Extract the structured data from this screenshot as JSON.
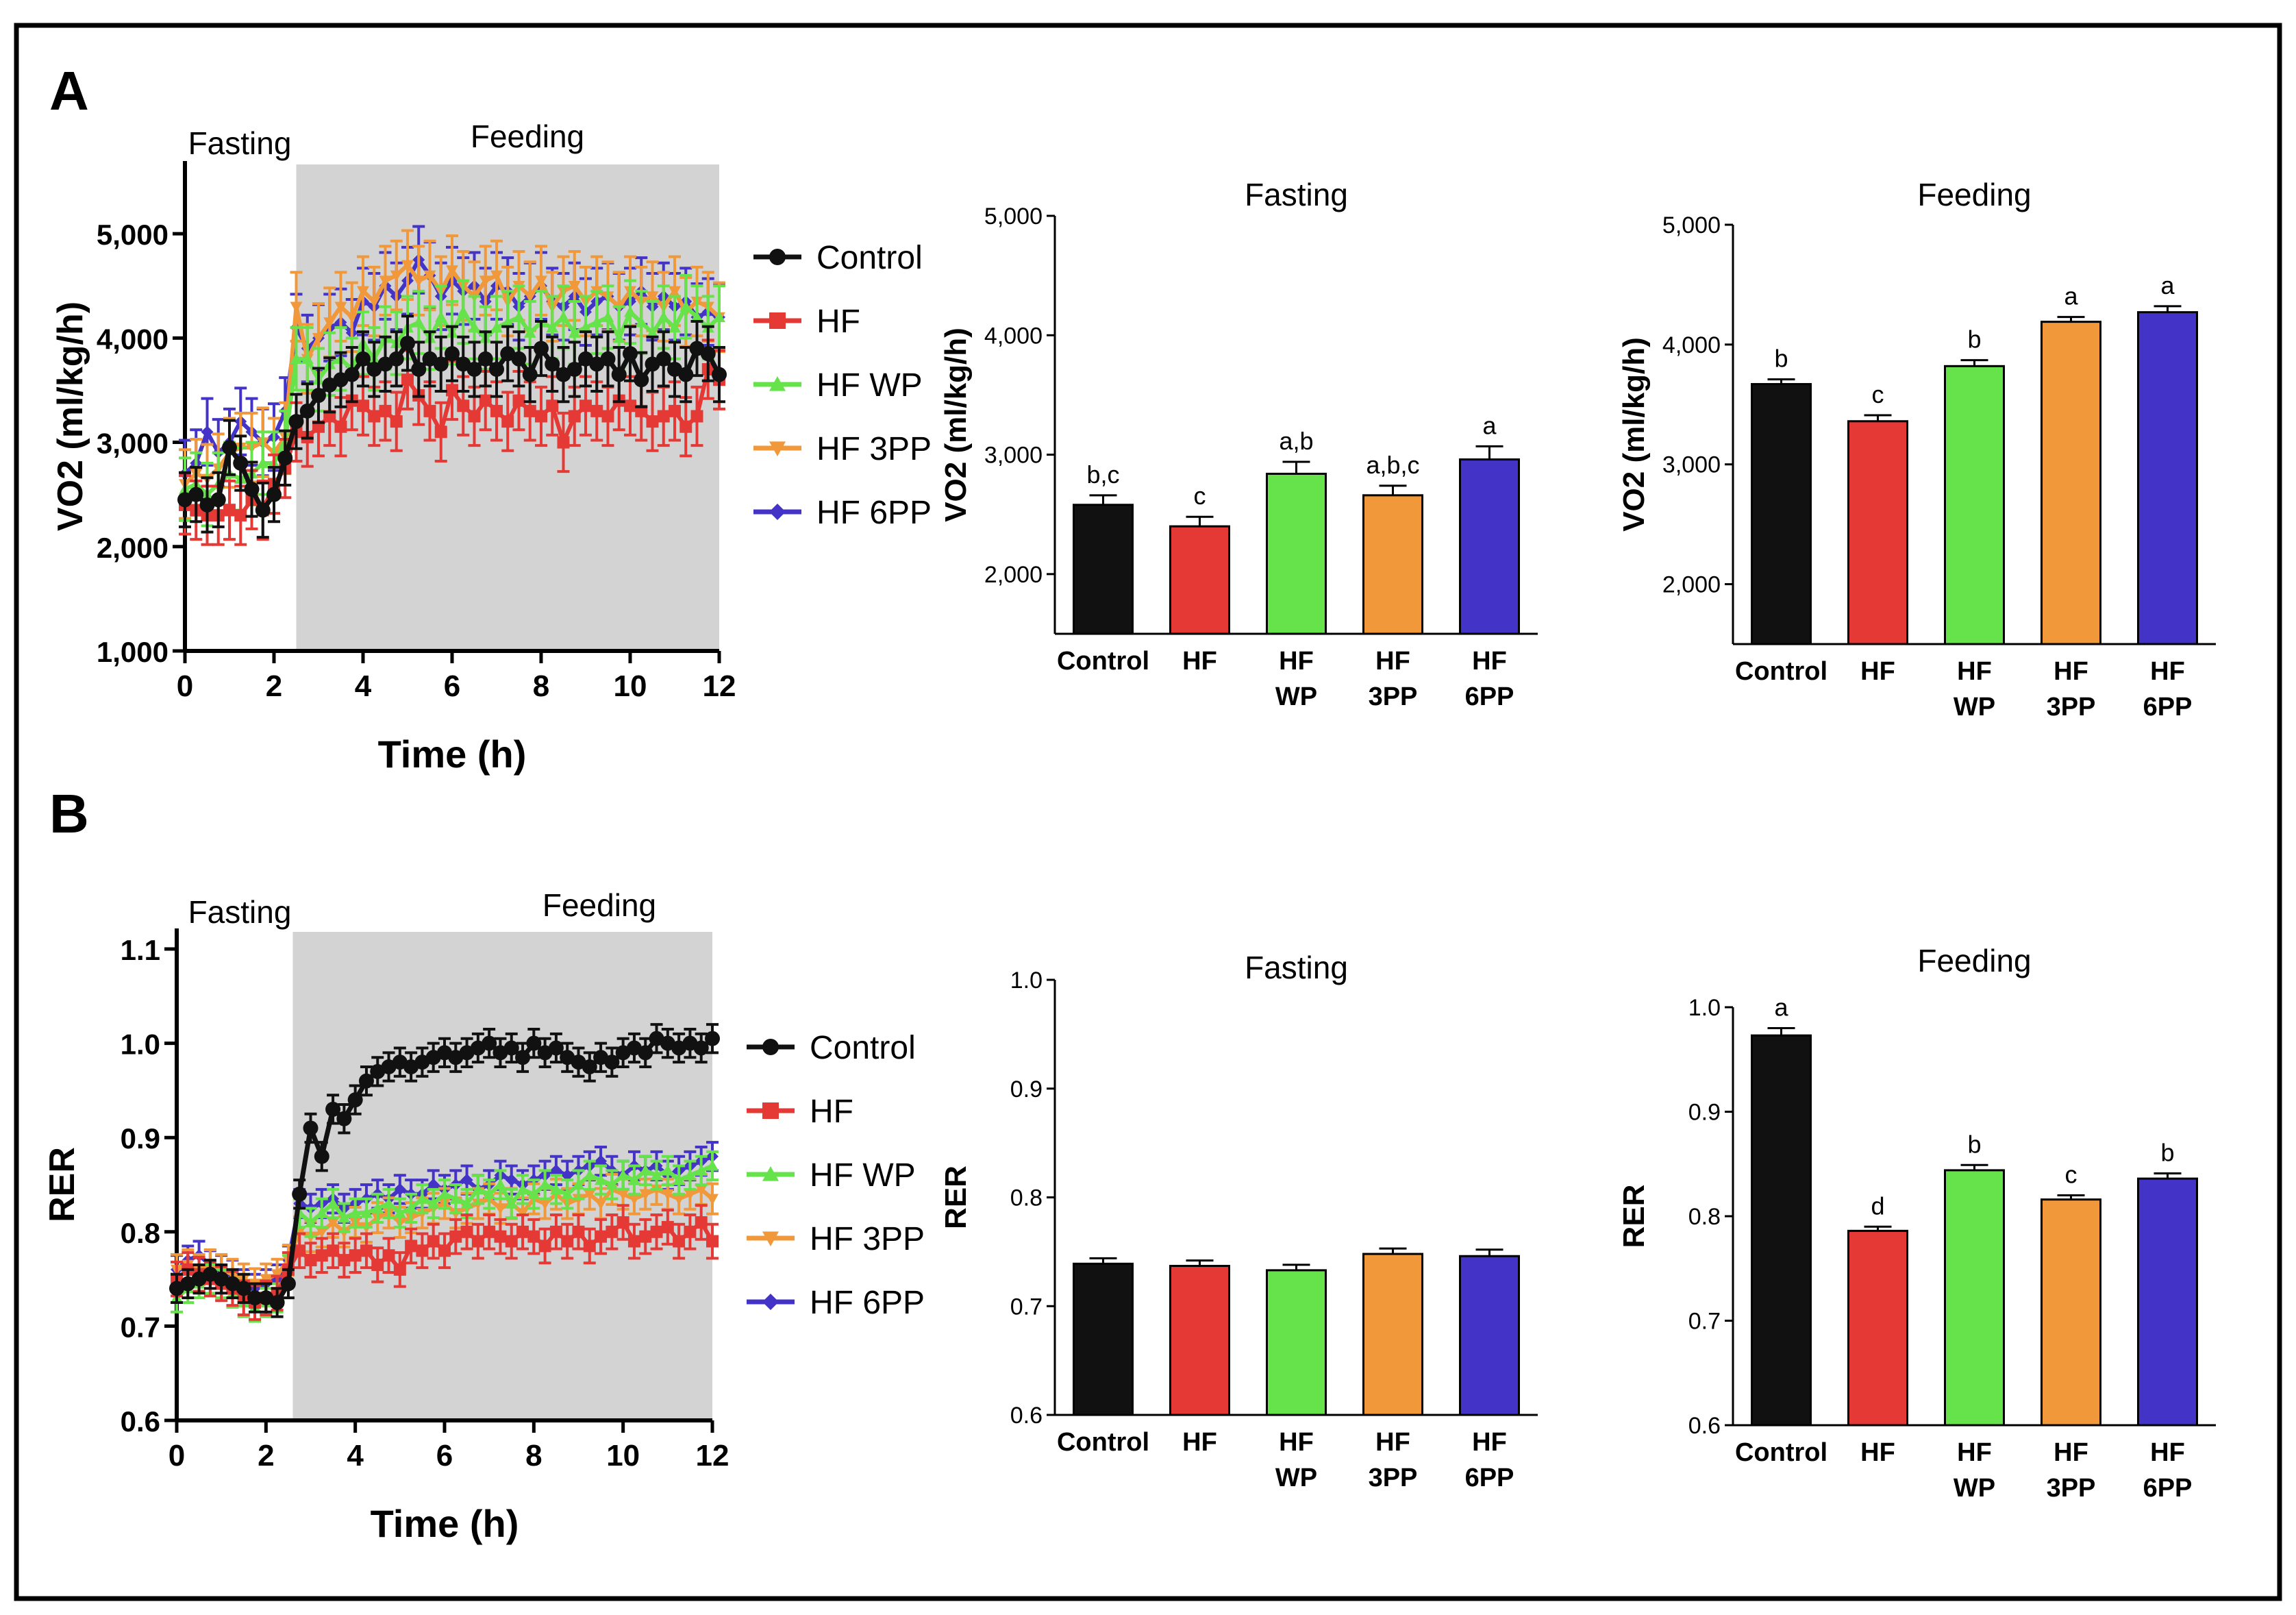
{
  "panels": {
    "A": "A",
    "B": "B"
  },
  "colors": {
    "Control": "#111111",
    "HF": "#e53935",
    "HF WP": "#66e34a",
    "HF 3PP": "#f0983a",
    "HF 6PP": "#4433c7",
    "shade": "#d3d3d3"
  },
  "chart_data": [
    {
      "id": "A_time",
      "type": "line",
      "ylabel": "VO2 (ml/kg/h)",
      "xlabel": "Time (h)",
      "xlim": [
        0,
        12
      ],
      "ylim": [
        1000,
        5500
      ],
      "xticks": [
        0,
        2,
        4,
        6,
        8,
        10,
        12
      ],
      "yticks": [
        1000,
        2000,
        3000,
        4000,
        5000
      ],
      "ytick_labels": [
        "1,000",
        "2,000",
        "3,000",
        "4,000",
        "5,000"
      ],
      "phase_labels": {
        "fasting": "Fasting",
        "feeding": "Feeding"
      },
      "feeding_start": 2.5,
      "legend": [
        "Control",
        "HF",
        "HF WP",
        "HF 3PP",
        "HF 6PP"
      ],
      "x": [
        0,
        0.25,
        0.5,
        0.75,
        1,
        1.25,
        1.5,
        1.75,
        2,
        2.25,
        2.5,
        2.75,
        3,
        3.25,
        3.5,
        3.75,
        4,
        4.25,
        4.5,
        4.75,
        5,
        5.25,
        5.5,
        5.75,
        6,
        6.25,
        6.5,
        6.75,
        7,
        7.25,
        7.5,
        7.75,
        8,
        8.25,
        8.5,
        8.75,
        9,
        9.25,
        9.5,
        9.75,
        10,
        10.25,
        10.5,
        10.75,
        11,
        11.25,
        11.5,
        11.75,
        12
      ],
      "series": [
        {
          "name": "Control",
          "err": 260,
          "values": [
            2450,
            2500,
            2400,
            2450,
            2950,
            2800,
            2550,
            2350,
            2500,
            2850,
            3200,
            3300,
            3450,
            3550,
            3600,
            3650,
            3800,
            3700,
            3750,
            3800,
            3950,
            3700,
            3800,
            3750,
            3850,
            3750,
            3700,
            3800,
            3700,
            3850,
            3800,
            3650,
            3900,
            3750,
            3650,
            3700,
            3800,
            3750,
            3800,
            3650,
            3850,
            3600,
            3750,
            3800,
            3700,
            3650,
            3900,
            3850,
            3650
          ]
        },
        {
          "name": "HF",
          "err": 280,
          "values": [
            2400,
            2350,
            2300,
            2300,
            2350,
            2300,
            2450,
            2350,
            2600,
            2750,
            3100,
            3050,
            3150,
            3250,
            3150,
            3400,
            3350,
            3250,
            3300,
            3200,
            3600,
            3450,
            3300,
            3100,
            3500,
            3350,
            3250,
            3400,
            3300,
            3200,
            3400,
            3300,
            3250,
            3350,
            3000,
            3250,
            3350,
            3300,
            3250,
            3400,
            3350,
            3300,
            3200,
            3250,
            3300,
            3150,
            3250,
            3700,
            3600
          ]
        },
        {
          "name": "HF WP",
          "err": 300,
          "values": [
            2550,
            2600,
            2500,
            2600,
            2700,
            2650,
            2700,
            2800,
            2800,
            3000,
            3800,
            3800,
            3600,
            3750,
            3800,
            3700,
            3950,
            3800,
            4000,
            3950,
            4100,
            4150,
            4000,
            4200,
            4050,
            4250,
            4100,
            4000,
            4100,
            4150,
            4200,
            4050,
            4150,
            4100,
            4200,
            4050,
            4100,
            4150,
            4200,
            4000,
            4250,
            4150,
            4050,
            4200,
            4100,
            4300,
            4200,
            4100,
            4200
          ]
        },
        {
          "name": "HF 3PP",
          "err": 330,
          "values": [
            2600,
            2700,
            2650,
            2750,
            2900,
            2950,
            2950,
            3000,
            2900,
            3050,
            4300,
            3800,
            4000,
            4150,
            4300,
            4200,
            4450,
            4350,
            4550,
            4600,
            4700,
            4550,
            4600,
            4450,
            4650,
            4500,
            4400,
            4550,
            4600,
            4350,
            4500,
            4400,
            4550,
            4300,
            4450,
            4500,
            4350,
            4450,
            4400,
            4300,
            4450,
            4350,
            4400,
            4300,
            4450,
            4250,
            4350,
            4300,
            4200
          ]
        },
        {
          "name": "HF 6PP",
          "err": 320,
          "values": [
            2700,
            2800,
            3100,
            2900,
            3000,
            3200,
            3100,
            3000,
            3050,
            3300,
            4100,
            3900,
            4000,
            4100,
            4150,
            4050,
            4350,
            4300,
            4500,
            4400,
            4550,
            4750,
            4600,
            4400,
            4550,
            4450,
            4500,
            4350,
            4500,
            4450,
            4300,
            4400,
            4500,
            4350,
            4300,
            4400,
            4250,
            4350,
            4400,
            4300,
            4350,
            4450,
            4300,
            4400,
            4300,
            4350,
            4200,
            4250,
            4200
          ]
        }
      ]
    },
    {
      "id": "A_fasting_bar",
      "type": "bar",
      "title": "Fasting",
      "ylabel": "VO2 (ml/kg/h)",
      "ylim": [
        1500,
        5000
      ],
      "yticks": [
        2000,
        3000,
        4000,
        5000
      ],
      "ytick_labels": [
        "2,000",
        "3,000",
        "4,000",
        "5,000"
      ],
      "categories": [
        [
          "Control"
        ],
        [
          "HF"
        ],
        [
          "HF",
          "WP"
        ],
        [
          "HF",
          "3PP"
        ],
        [
          "HF",
          "6PP"
        ]
      ],
      "series_colors": [
        "Control",
        "HF",
        "HF WP",
        "HF 3PP",
        "HF 6PP"
      ],
      "values": [
        2580,
        2400,
        2840,
        2660,
        2960
      ],
      "errors": [
        80,
        80,
        100,
        80,
        110
      ],
      "annotations": [
        "b,c",
        "c",
        "a,b",
        "a,b,c",
        "a"
      ]
    },
    {
      "id": "A_feeding_bar",
      "type": "bar",
      "title": "Feeding",
      "ylabel": "VO2 (ml/kg/h)",
      "ylim": [
        1500,
        5000
      ],
      "yticks": [
        2000,
        3000,
        4000,
        5000
      ],
      "ytick_labels": [
        "2,000",
        "3,000",
        "4,000",
        "5,000"
      ],
      "categories": [
        [
          "Control"
        ],
        [
          "HF"
        ],
        [
          "HF",
          "WP"
        ],
        [
          "HF",
          "3PP"
        ],
        [
          "HF",
          "6PP"
        ]
      ],
      "series_colors": [
        "Control",
        "HF",
        "HF WP",
        "HF 3PP",
        "HF 6PP"
      ],
      "values": [
        3670,
        3360,
        3820,
        4190,
        4270
      ],
      "errors": [
        40,
        50,
        50,
        40,
        50
      ],
      "annotations": [
        "b",
        "c",
        "b",
        "a",
        "a"
      ]
    },
    {
      "id": "B_time",
      "type": "line",
      "ylabel": "RER",
      "xlabel": "Time (h)",
      "xlim": [
        0,
        12
      ],
      "ylim": [
        0.6,
        1.1
      ],
      "xticks": [
        0,
        2,
        4,
        6,
        8,
        10,
        12
      ],
      "yticks": [
        0.6,
        0.7,
        0.8,
        0.9,
        1.0,
        1.1
      ],
      "ytick_labels": [
        "0.6",
        "0.7",
        "0.8",
        "0.9",
        "1.0",
        "1.1"
      ],
      "phase_labels": {
        "fasting": "Fasting",
        "feeding": "Feeding"
      },
      "feeding_start": 2.6,
      "legend": [
        "Control",
        "HF",
        "HF WP",
        "HF 3PP",
        "HF 6PP"
      ],
      "x": [
        0,
        0.25,
        0.5,
        0.75,
        1,
        1.25,
        1.5,
        1.75,
        2,
        2.25,
        2.5,
        2.75,
        3,
        3.25,
        3.5,
        3.75,
        4,
        4.25,
        4.5,
        4.75,
        5,
        5.25,
        5.5,
        5.75,
        6,
        6.25,
        6.5,
        6.75,
        7,
        7.25,
        7.5,
        7.75,
        8,
        8.25,
        8.5,
        8.75,
        9,
        9.25,
        9.5,
        9.75,
        10,
        10.25,
        10.5,
        10.75,
        11,
        11.25,
        11.5,
        11.75,
        12
      ],
      "series": [
        {
          "name": "Control",
          "err": 0.015,
          "values": [
            0.74,
            0.745,
            0.75,
            0.755,
            0.75,
            0.745,
            0.74,
            0.73,
            0.73,
            0.725,
            0.745,
            0.84,
            0.91,
            0.88,
            0.93,
            0.92,
            0.94,
            0.96,
            0.97,
            0.975,
            0.98,
            0.975,
            0.98,
            0.985,
            0.99,
            0.985,
            0.99,
            0.995,
            1.0,
            0.99,
            0.995,
            0.985,
            1.0,
            0.99,
            0.995,
            0.985,
            0.98,
            0.975,
            0.985,
            0.98,
            0.99,
            0.995,
            0.99,
            1.005,
            1.0,
            0.995,
            1.0,
            0.995,
            1.005
          ]
        },
        {
          "name": "HF",
          "err": 0.018,
          "values": [
            0.75,
            0.76,
            0.755,
            0.75,
            0.745,
            0.74,
            0.73,
            0.725,
            0.73,
            0.735,
            0.76,
            0.78,
            0.77,
            0.775,
            0.78,
            0.77,
            0.775,
            0.78,
            0.765,
            0.775,
            0.76,
            0.785,
            0.78,
            0.79,
            0.78,
            0.795,
            0.8,
            0.79,
            0.8,
            0.795,
            0.79,
            0.8,
            0.795,
            0.785,
            0.8,
            0.79,
            0.8,
            0.785,
            0.795,
            0.8,
            0.81,
            0.79,
            0.795,
            0.8,
            0.805,
            0.79,
            0.8,
            0.81,
            0.79
          ]
        },
        {
          "name": "HF WP",
          "err": 0.015,
          "values": [
            0.73,
            0.74,
            0.745,
            0.75,
            0.745,
            0.735,
            0.725,
            0.72,
            0.725,
            0.73,
            0.76,
            0.82,
            0.81,
            0.82,
            0.83,
            0.815,
            0.82,
            0.82,
            0.825,
            0.83,
            0.82,
            0.825,
            0.835,
            0.83,
            0.84,
            0.835,
            0.83,
            0.845,
            0.84,
            0.85,
            0.83,
            0.845,
            0.84,
            0.85,
            0.845,
            0.84,
            0.85,
            0.86,
            0.855,
            0.85,
            0.86,
            0.855,
            0.865,
            0.86,
            0.865,
            0.855,
            0.86,
            0.865,
            0.87
          ]
        },
        {
          "name": "HF 3PP",
          "err": 0.016,
          "values": [
            0.76,
            0.765,
            0.76,
            0.765,
            0.76,
            0.755,
            0.75,
            0.745,
            0.75,
            0.755,
            0.77,
            0.8,
            0.795,
            0.8,
            0.81,
            0.8,
            0.81,
            0.805,
            0.815,
            0.82,
            0.81,
            0.815,
            0.82,
            0.825,
            0.83,
            0.82,
            0.825,
            0.83,
            0.835,
            0.825,
            0.83,
            0.82,
            0.835,
            0.83,
            0.84,
            0.83,
            0.835,
            0.84,
            0.83,
            0.845,
            0.84,
            0.835,
            0.84,
            0.845,
            0.84,
            0.835,
            0.84,
            0.845,
            0.835
          ]
        },
        {
          "name": "HF 6PP",
          "err": 0.015,
          "values": [
            0.76,
            0.77,
            0.775,
            0.765,
            0.76,
            0.755,
            0.745,
            0.74,
            0.745,
            0.75,
            0.77,
            0.83,
            0.825,
            0.83,
            0.835,
            0.825,
            0.83,
            0.835,
            0.84,
            0.835,
            0.845,
            0.84,
            0.84,
            0.85,
            0.845,
            0.85,
            0.855,
            0.845,
            0.85,
            0.86,
            0.855,
            0.85,
            0.855,
            0.86,
            0.865,
            0.86,
            0.865,
            0.87,
            0.875,
            0.865,
            0.86,
            0.87,
            0.865,
            0.87,
            0.86,
            0.865,
            0.87,
            0.875,
            0.88
          ]
        }
      ]
    },
    {
      "id": "B_fasting_bar",
      "type": "bar",
      "title": "Fasting",
      "ylabel": "RER",
      "ylim": [
        0.6,
        1.0
      ],
      "yticks": [
        0.6,
        0.7,
        0.8,
        0.9,
        1.0
      ],
      "ytick_labels": [
        "0.6",
        "0.7",
        "0.8",
        "0.9",
        "1.0"
      ],
      "categories": [
        [
          "Control"
        ],
        [
          "HF"
        ],
        [
          "HF",
          "WP"
        ],
        [
          "HF",
          "3PP"
        ],
        [
          "HF",
          "6PP"
        ]
      ],
      "series_colors": [
        "Control",
        "HF",
        "HF WP",
        "HF 3PP",
        "HF 6PP"
      ],
      "values": [
        0.739,
        0.737,
        0.733,
        0.748,
        0.746
      ],
      "errors": [
        0.005,
        0.005,
        0.005,
        0.005,
        0.006
      ],
      "annotations": [
        "",
        "",
        "",
        "",
        ""
      ]
    },
    {
      "id": "B_feeding_bar",
      "type": "bar",
      "title": "Feeding",
      "ylabel": "RER",
      "ylim": [
        0.6,
        1.0
      ],
      "yticks": [
        0.6,
        0.7,
        0.8,
        0.9,
        1.0
      ],
      "ytick_labels": [
        "0.6",
        "0.7",
        "0.8",
        "0.9",
        "1.0"
      ],
      "categories": [
        [
          "Control"
        ],
        [
          "HF"
        ],
        [
          "HF",
          "WP"
        ],
        [
          "HF",
          "3PP"
        ],
        [
          "HF",
          "6PP"
        ]
      ],
      "series_colors": [
        "Control",
        "HF",
        "HF WP",
        "HF 3PP",
        "HF 6PP"
      ],
      "values": [
        0.973,
        0.786,
        0.844,
        0.816,
        0.836
      ],
      "errors": [
        0.007,
        0.004,
        0.005,
        0.004,
        0.005
      ],
      "annotations": [
        "a",
        "d",
        "b",
        "c",
        "b"
      ]
    }
  ]
}
